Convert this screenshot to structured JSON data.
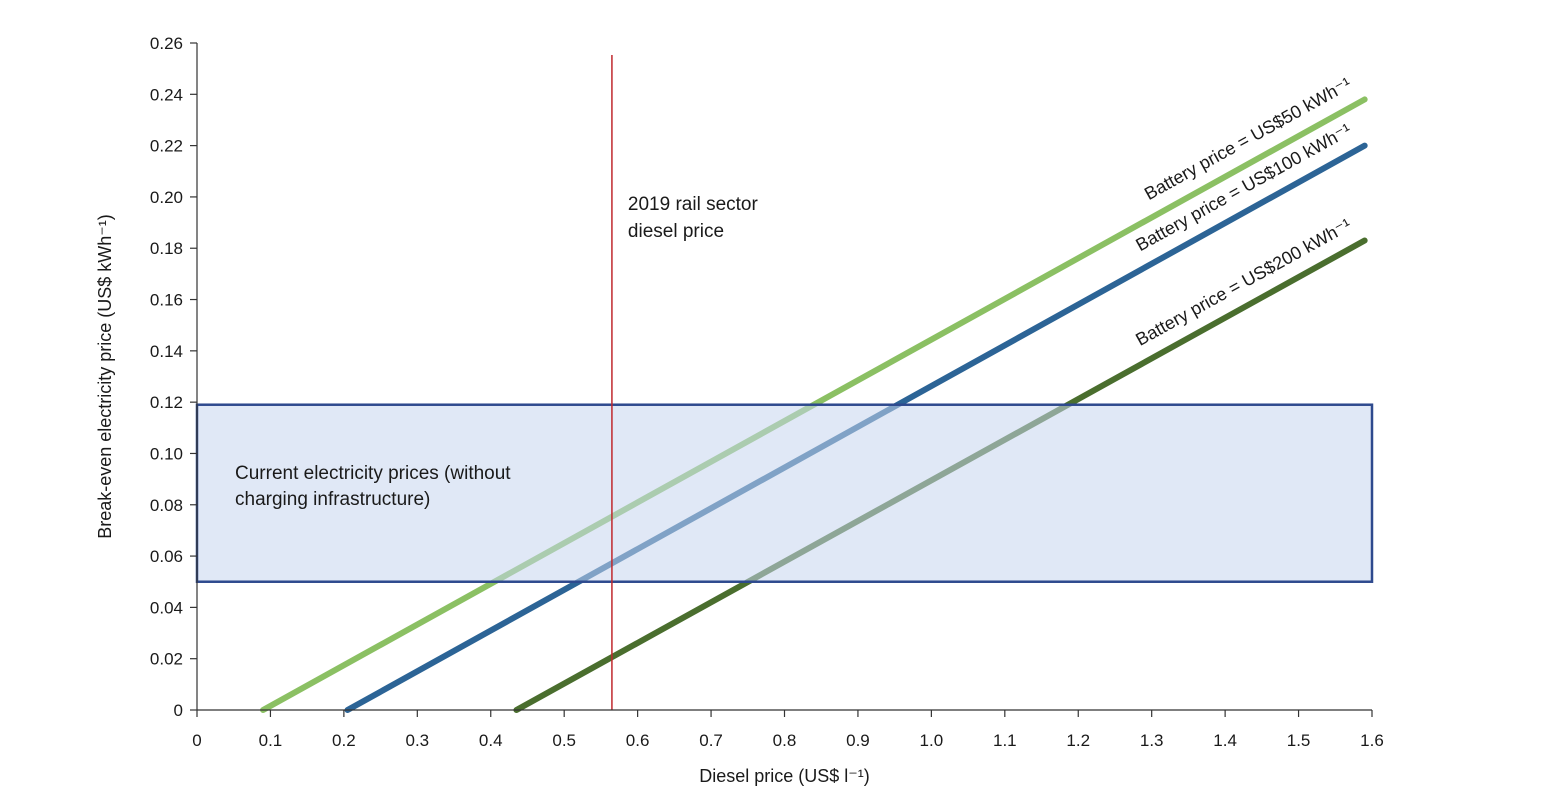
{
  "chart_data": {
    "type": "line",
    "xlabel": "Diesel price (US$ l⁻¹)",
    "ylabel": "Break-even electricity price (US$ kWh⁻¹)",
    "xlim": [
      0,
      1.6
    ],
    "ylim": [
      0,
      0.26
    ],
    "x_ticks": [
      0,
      0.1,
      0.2,
      0.3,
      0.4,
      0.5,
      0.6,
      0.7,
      0.8,
      0.9,
      1.0,
      1.1,
      1.2,
      1.3,
      1.4,
      1.5,
      1.6
    ],
    "x_tick_labels": [
      "0",
      "0.1",
      "0.2",
      "0.3",
      "0.4",
      "0.5",
      "0.6",
      "0.7",
      "0.8",
      "0.9",
      "1.0",
      "1.1",
      "1.2",
      "1.3",
      "1.4",
      "1.5",
      "1.6"
    ],
    "y_ticks": [
      0,
      0.02,
      0.04,
      0.06,
      0.08,
      0.1,
      0.12,
      0.14,
      0.16,
      0.18,
      0.2,
      0.22,
      0.24,
      0.26
    ],
    "y_tick_labels": [
      "0",
      "0.02",
      "0.04",
      "0.06",
      "0.08",
      "0.10",
      "0.12",
      "0.14",
      "0.16",
      "0.18",
      "0.20",
      "0.22",
      "0.24",
      "0.26"
    ],
    "grid": false,
    "legend": "none",
    "series": [
      {
        "name": "Battery price = US$50 kWh⁻¹",
        "color": "#8bc063",
        "x": [
          0.09,
          1.59
        ],
        "y": [
          0.0,
          0.238
        ]
      },
      {
        "name": "Battery price = US$100 kWh⁻¹",
        "color": "#2c6496",
        "x": [
          0.205,
          1.59
        ],
        "y": [
          0.0,
          0.22
        ]
      },
      {
        "name": "Battery price = US$200 kWh⁻¹",
        "color": "#4a6e2e",
        "x": [
          0.435,
          1.59
        ],
        "y": [
          0.0,
          0.183
        ]
      }
    ],
    "reference_line": {
      "x": 0.565,
      "color": "#c0282d",
      "label_line1": "2019 rail sector",
      "label_line2": "diesel price"
    },
    "band": {
      "x": [
        0,
        1.6
      ],
      "y": [
        0.05,
        0.119
      ],
      "fill": "#c7d6ee",
      "stroke": "#2e4a8e",
      "label_line1": "Current electricity prices (without",
      "label_line2": "charging infrastructure)"
    }
  }
}
